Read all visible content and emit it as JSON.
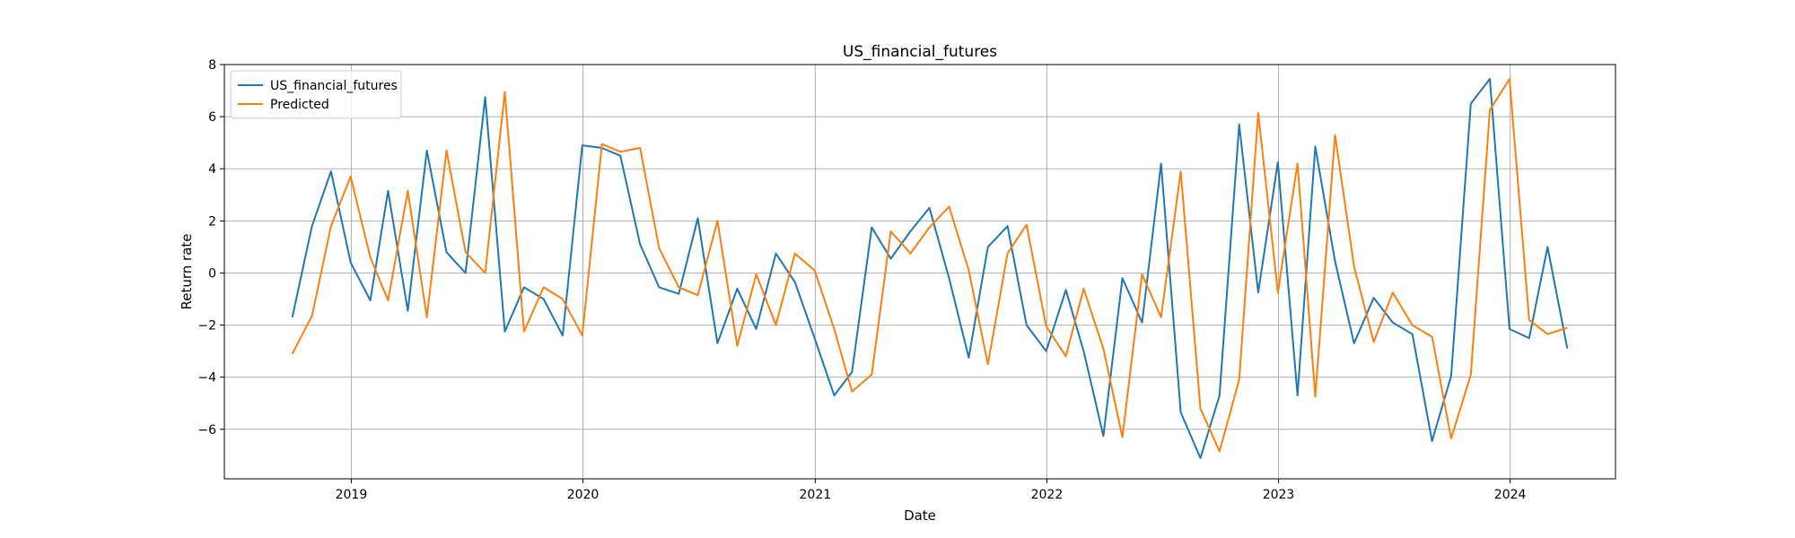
{
  "chart_data": {
    "type": "line",
    "title": "US_financial_futures",
    "xlabel": "Date",
    "ylabel": "Return rate",
    "xlim": [
      "2018-06-15",
      "2024-06-15"
    ],
    "ylim": [
      -7.9,
      8.0
    ],
    "grid": true,
    "legend_placement": "top-left",
    "x_ticks": [
      "2019",
      "2020",
      "2021",
      "2022",
      "2023",
      "2024"
    ],
    "y_ticks": [
      -6,
      -4,
      -2,
      0,
      2,
      4,
      6,
      8
    ],
    "dates": [
      "2018-09-30",
      "2018-10-31",
      "2018-11-30",
      "2018-12-31",
      "2019-01-31",
      "2019-02-28",
      "2019-03-31",
      "2019-04-30",
      "2019-05-31",
      "2019-06-30",
      "2019-07-31",
      "2019-08-31",
      "2019-09-30",
      "2019-10-31",
      "2019-11-30",
      "2019-12-31",
      "2020-01-31",
      "2020-02-29",
      "2020-03-31",
      "2020-04-30",
      "2020-05-31",
      "2020-06-30",
      "2020-07-31",
      "2020-08-31",
      "2020-09-30",
      "2020-10-31",
      "2020-11-30",
      "2020-12-31",
      "2021-01-31",
      "2021-02-28",
      "2021-03-31",
      "2021-04-30",
      "2021-05-31",
      "2021-06-30",
      "2021-07-31",
      "2021-08-31",
      "2021-09-30",
      "2021-10-31",
      "2021-11-30",
      "2021-12-31",
      "2022-01-31",
      "2022-02-28",
      "2022-03-31",
      "2022-04-30",
      "2022-05-31",
      "2022-06-30",
      "2022-07-31",
      "2022-08-31",
      "2022-09-30",
      "2022-10-31",
      "2022-11-30",
      "2022-12-31",
      "2023-01-31",
      "2023-02-28",
      "2023-03-31",
      "2023-04-30",
      "2023-05-31",
      "2023-06-30",
      "2023-07-31",
      "2023-08-31",
      "2023-09-30",
      "2023-10-31",
      "2023-11-30",
      "2023-12-31",
      "2024-01-31",
      "2024-02-29",
      "2024-03-31"
    ],
    "series": [
      {
        "name": "US_financial_futures",
        "color": "#1f77b4",
        "values": [
          -1.7,
          1.8,
          3.9,
          0.4,
          -1.05,
          3.15,
          -1.45,
          4.7,
          0.8,
          0.0,
          6.75,
          -2.25,
          -0.55,
          -1.0,
          -2.4,
          4.9,
          4.8,
          4.5,
          1.1,
          -0.55,
          -0.8,
          2.1,
          -2.7,
          -0.6,
          -2.15,
          0.75,
          -0.35,
          -2.5,
          -4.7,
          -3.8,
          1.75,
          0.55,
          1.6,
          2.5,
          -0.2,
          -3.25,
          1.0,
          1.8,
          -2.0,
          -3.0,
          -0.65,
          -3.0,
          -6.25,
          -0.2,
          -1.9,
          4.2,
          -5.35,
          -7.1,
          -4.7,
          5.7,
          -0.75,
          4.25,
          -4.7,
          4.85,
          0.45,
          -2.7,
          -0.95,
          -1.9,
          -2.35,
          -6.45,
          -3.95,
          6.5,
          7.45,
          -2.15,
          -2.5,
          1.0,
          -2.9
        ]
      },
      {
        "name": "Predicted",
        "color": "#ff7f0e",
        "values": [
          -3.1,
          -1.65,
          1.8,
          3.7,
          0.6,
          -1.05,
          3.15,
          -1.7,
          4.7,
          0.8,
          0.0,
          6.95,
          -2.25,
          -0.55,
          -1.0,
          -2.4,
          4.95,
          4.65,
          4.8,
          0.95,
          -0.55,
          -0.85,
          2.0,
          -2.8,
          -0.05,
          -2.0,
          0.75,
          0.1,
          -2.15,
          -4.55,
          -3.9,
          1.6,
          0.75,
          1.75,
          2.55,
          0.1,
          -3.5,
          0.75,
          1.85,
          -2.05,
          -3.2,
          -0.6,
          -2.9,
          -6.3,
          -0.05,
          -1.7,
          3.9,
          -5.2,
          -6.85,
          -4.1,
          6.15,
          -0.75,
          4.2,
          -4.75,
          5.3,
          0.25,
          -2.65,
          -0.75,
          -2.0,
          -2.45,
          -6.35,
          -3.9,
          6.25,
          7.45,
          -1.8,
          -2.35,
          -2.1
        ]
      }
    ]
  }
}
